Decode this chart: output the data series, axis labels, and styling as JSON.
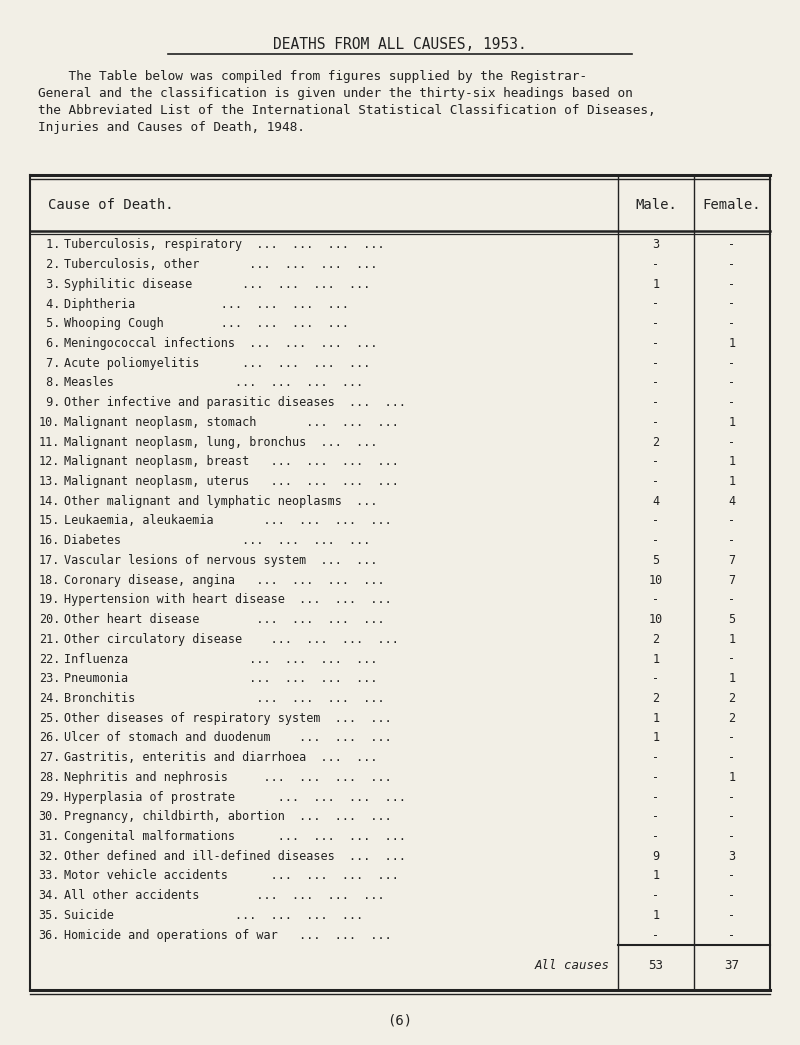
{
  "title": "DEATHS FROM ALL CAUSES, 1953.",
  "intro_line1": "    The Table below was compiled from figures supplied by the Registrar-",
  "intro_line2": "General and the classification is given under the thirty-six headings based on",
  "intro_line3": "the Abbreviated List of the International Statistical Classification of Diseases,",
  "intro_line4": "Injuries and Causes of Death, 1948.",
  "col_header_cause": "Cause of Death.",
  "col_header_male": "Male.",
  "col_header_female": "Female.",
  "rows": [
    {
      "num": " 1.",
      "cause": "Tuberculosis, respiratory",
      "dots": "  ...  ...  ...  ...",
      "male": "3",
      "female": "-"
    },
    {
      "num": " 2.",
      "cause": "Tuberculosis, other",
      "dots": "       ...  ...  ...  ...",
      "male": "-",
      "female": "-"
    },
    {
      "num": " 3.",
      "cause": "Syphilitic disease",
      "dots": "       ...  ...  ...  ...",
      "male": "1",
      "female": "-"
    },
    {
      "num": " 4.",
      "cause": "Diphtheria",
      "dots": "            ...  ...  ...  ...",
      "male": "-",
      "female": "-"
    },
    {
      "num": " 5.",
      "cause": "Whooping Cough",
      "dots": "        ...  ...  ...  ...",
      "male": "-",
      "female": "-"
    },
    {
      "num": " 6.",
      "cause": "Meningococcal infections",
      "dots": "  ...  ...  ...  ...",
      "male": "-",
      "female": "1"
    },
    {
      "num": " 7.",
      "cause": "Acute poliomyelitis",
      "dots": "      ...  ...  ...  ...",
      "male": "-",
      "female": "-"
    },
    {
      "num": " 8.",
      "cause": "Measles",
      "dots": "                 ...  ...  ...  ...",
      "male": "-",
      "female": "-"
    },
    {
      "num": " 9.",
      "cause": "Other infective and parasitic diseases",
      "dots": "  ...  ...",
      "male": "-",
      "female": "-"
    },
    {
      "num": "10.",
      "cause": "Malignant neoplasm, stomach",
      "dots": "       ...  ...  ...",
      "male": "-",
      "female": "1"
    },
    {
      "num": "11.",
      "cause": "Malignant neoplasm, lung, bronchus",
      "dots": "  ...  ...",
      "male": "2",
      "female": "-"
    },
    {
      "num": "12.",
      "cause": "Malignant neoplasm, breast",
      "dots": "   ...  ...  ...  ...",
      "male": "-",
      "female": "1"
    },
    {
      "num": "13.",
      "cause": "Malignant neoplasm, uterus",
      "dots": "   ...  ...  ...  ...",
      "male": "-",
      "female": "1"
    },
    {
      "num": "14.",
      "cause": "Other malignant and lymphatic neoplasms",
      "dots": "  ...",
      "male": "4",
      "female": "4"
    },
    {
      "num": "15.",
      "cause": "Leukaemia, aleukaemia",
      "dots": "       ...  ...  ...  ...",
      "male": "-",
      "female": "-"
    },
    {
      "num": "16.",
      "cause": "Diabetes",
      "dots": "                 ...  ...  ...  ...",
      "male": "-",
      "female": "-"
    },
    {
      "num": "17.",
      "cause": "Vascular lesions of nervous system",
      "dots": "  ...  ...",
      "male": "5",
      "female": "7"
    },
    {
      "num": "18.",
      "cause": "Coronary disease, angina",
      "dots": "   ...  ...  ...  ...",
      "male": "10",
      "female": "7"
    },
    {
      "num": "19.",
      "cause": "Hypertension with heart disease",
      "dots": "  ...  ...  ...",
      "male": "-",
      "female": "-"
    },
    {
      "num": "20.",
      "cause": "Other heart disease",
      "dots": "        ...  ...  ...  ...",
      "male": "10",
      "female": "5"
    },
    {
      "num": "21.",
      "cause": "Other circulatory disease",
      "dots": "    ...  ...  ...  ...",
      "male": "2",
      "female": "1"
    },
    {
      "num": "22.",
      "cause": "Influenza",
      "dots": "                 ...  ...  ...  ...",
      "male": "1",
      "female": "-"
    },
    {
      "num": "23.",
      "cause": "Pneumonia",
      "dots": "                 ...  ...  ...  ...",
      "male": "-",
      "female": "1"
    },
    {
      "num": "24.",
      "cause": "Bronchitis",
      "dots": "                 ...  ...  ...  ...",
      "male": "2",
      "female": "2"
    },
    {
      "num": "25.",
      "cause": "Other diseases of respiratory system",
      "dots": "  ...  ...",
      "male": "1",
      "female": "2"
    },
    {
      "num": "26.",
      "cause": "Ulcer of stomach and duodenum",
      "dots": "    ...  ...  ...",
      "male": "1",
      "female": "-"
    },
    {
      "num": "27.",
      "cause": "Gastritis, enteritis and diarrhoea",
      "dots": "  ...  ...",
      "male": "-",
      "female": "-"
    },
    {
      "num": "28.",
      "cause": "Nephritis and nephrosis",
      "dots": "     ...  ...  ...  ...",
      "male": "-",
      "female": "1"
    },
    {
      "num": "29.",
      "cause": "Hyperplasia of prostrate",
      "dots": "      ...  ...  ...  ...",
      "male": "-",
      "female": "-"
    },
    {
      "num": "30.",
      "cause": "Pregnancy, childbirth, abortion",
      "dots": "  ...  ...  ...",
      "male": "-",
      "female": "-"
    },
    {
      "num": "31.",
      "cause": "Congenital malformations",
      "dots": "      ...  ...  ...  ...",
      "male": "-",
      "female": "-"
    },
    {
      "num": "32.",
      "cause": "Other defined and ill-defined diseases",
      "dots": "  ...  ...",
      "male": "9",
      "female": "3"
    },
    {
      "num": "33.",
      "cause": "Motor vehicle accidents",
      "dots": "      ...  ...  ...  ...",
      "male": "1",
      "female": "-"
    },
    {
      "num": "34.",
      "cause": "All other accidents",
      "dots": "        ...  ...  ...  ...",
      "male": "-",
      "female": "-"
    },
    {
      "num": "35.",
      "cause": "Suicide",
      "dots": "                 ...  ...  ...  ...",
      "male": "1",
      "female": "-"
    },
    {
      "num": "36.",
      "cause": "Homicide and operations of war",
      "dots": "   ...  ...  ...",
      "male": "-",
      "female": "-"
    }
  ],
  "total_label": "All causes",
  "total_male": "53",
  "total_female": "37",
  "footer": "(6)",
  "bg_color": "#f2efe6",
  "text_color": "#222222"
}
